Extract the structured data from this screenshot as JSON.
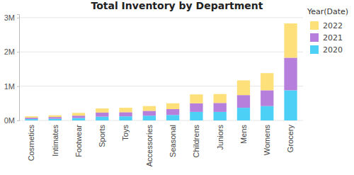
{
  "chart_data": {
    "type": "bar",
    "title": "Total Inventory by Department",
    "categories": [
      "Cosmetics",
      "Intimates",
      "Footwear",
      "Sports",
      "Toys",
      "Accessories",
      "Seasonal",
      "Childrens",
      "Juniors",
      "Mens",
      "Womens",
      "Grocery"
    ],
    "series": [
      {
        "name": "2020",
        "color": "#4dd0f5",
        "values": [
          40000,
          50000,
          70000,
          110000,
          120000,
          140000,
          160000,
          250000,
          250000,
          370000,
          420000,
          880000
        ]
      },
      {
        "name": "2021",
        "color": "#b57fdb",
        "values": [
          40000,
          50000,
          70000,
          120000,
          120000,
          140000,
          170000,
          250000,
          260000,
          370000,
          460000,
          950000
        ]
      },
      {
        "name": "2022",
        "color": "#fde07a",
        "values": [
          40000,
          50000,
          80000,
          120000,
          130000,
          140000,
          170000,
          260000,
          260000,
          430000,
          500000,
          1000000
        ]
      }
    ],
    "stacked": true,
    "ylim": [
      0,
      3100000
    ],
    "yticks": [
      {
        "value": 0,
        "label": "0M"
      },
      {
        "value": 1000000,
        "label": "1M"
      },
      {
        "value": 2000000,
        "label": "2M"
      },
      {
        "value": 3000000,
        "label": "3M"
      }
    ],
    "grid": true,
    "legend": "upper right",
    "legend_title": "Year(Date)"
  }
}
